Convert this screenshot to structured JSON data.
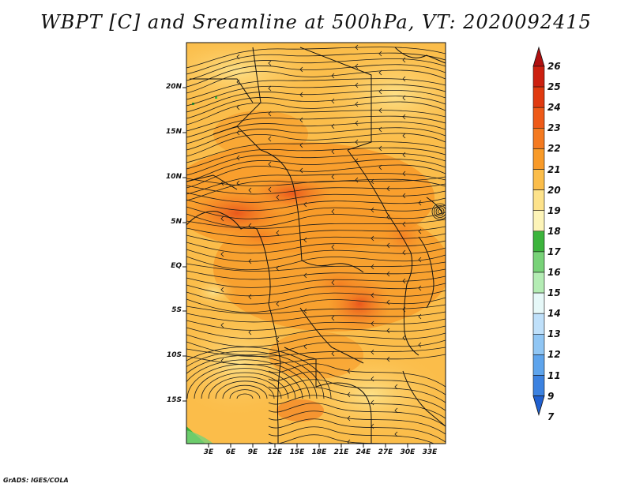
{
  "title": "WBPT [C] and Sreamline at 500hPa, VT: 2020092415",
  "footer": "GrADS: IGES/COLA",
  "lat_labels": [
    "20N",
    "15N",
    "10N",
    "5N",
    "EQ",
    "5S",
    "10S",
    "15S"
  ],
  "lon_labels": [
    "3E",
    "6E",
    "9E",
    "12E",
    "15E",
    "18E",
    "21E",
    "24E",
    "27E",
    "30E",
    "33E"
  ],
  "colorbar": {
    "labels": [
      "26",
      "25",
      "24",
      "23",
      "22",
      "21",
      "20",
      "19",
      "18",
      "17",
      "16",
      "15",
      "14",
      "13",
      "12",
      "11",
      "9",
      "7"
    ],
    "colors": [
      "#b01010",
      "#cc2010",
      "#e03a10",
      "#ee5a18",
      "#f47a20",
      "#f89a28",
      "#fbbd4a",
      "#fde28a",
      "#fdf4b8",
      "#3cb43c",
      "#78d278",
      "#b4ecb4",
      "#e6f8f8",
      "#bfe0fa",
      "#90c6f4",
      "#5ea4ec",
      "#3c82e0",
      "#2060d0"
    ]
  },
  "map": {
    "field_name": "WBPT",
    "units": "C",
    "level": "500hPa",
    "valid_time": "2020092415"
  }
}
